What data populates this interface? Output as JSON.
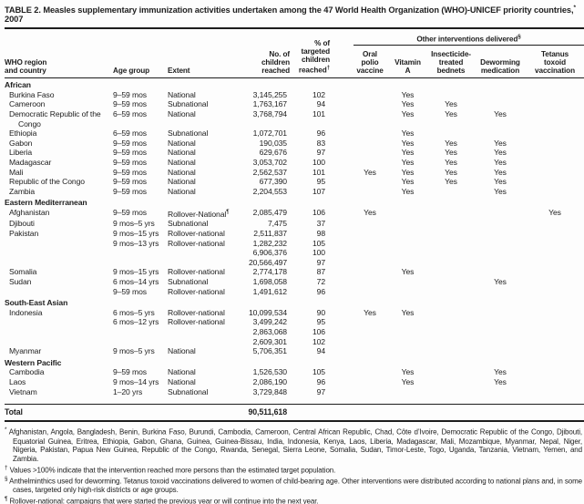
{
  "title": {
    "text": "TABLE 2. Measles supplementary immunization activities undertaken among the 47 World Health Organization (WHO)-UNICEF priority countries,",
    "marker": "*",
    "suffix": " 2007"
  },
  "header": {
    "country": "WHO region\nand country",
    "age": "Age group",
    "extent": "Extent",
    "reached": "No. of\nchildren\nreached",
    "pct": "% of\ntargeted\nchildren\nreached",
    "pct_marker": "†",
    "spanner": "Other interventions delivered",
    "spanner_marker": "§",
    "interventions": [
      "Oral\npolio\nvaccine",
      "Vitamin\nA",
      "Insecticide-\ntreated\nbednets",
      "Deworming\nmedication",
      "Tetanus\ntoxoid\nvaccination"
    ]
  },
  "table": {
    "rows": [
      {
        "type": "group",
        "country": "African"
      },
      {
        "type": "data",
        "country": "Burkina Faso",
        "age": "9–59 mos",
        "extent": "National",
        "reached": "3,145,255",
        "pct": "102",
        "interventions": [
          "",
          "Yes",
          "",
          "",
          ""
        ]
      },
      {
        "type": "data",
        "country": "Cameroon",
        "age": "9–59 mos",
        "extent": "Subnational",
        "reached": "1,763,167",
        "pct": "94",
        "interventions": [
          "",
          "Yes",
          "Yes",
          "",
          ""
        ]
      },
      {
        "type": "data",
        "country": "Democratic Republic of the Congo",
        "age": "6–59 mos",
        "extent": "National",
        "reached": "3,768,794",
        "pct": "101",
        "interventions": [
          "",
          "Yes",
          "Yes",
          "Yes",
          ""
        ]
      },
      {
        "type": "data",
        "country": "Ethiopia",
        "age": "6–59 mos",
        "extent": "Subnational",
        "reached": "1,072,701",
        "pct": "96",
        "interventions": [
          "",
          "Yes",
          "",
          "",
          ""
        ]
      },
      {
        "type": "data",
        "country": "Gabon",
        "age": "9–59 mos",
        "extent": "National",
        "reached": "190,035",
        "pct": "83",
        "interventions": [
          "",
          "Yes",
          "Yes",
          "Yes",
          ""
        ]
      },
      {
        "type": "data",
        "country": "Liberia",
        "age": "9–59 mos",
        "extent": "National",
        "reached": "629,676",
        "pct": "97",
        "interventions": [
          "",
          "Yes",
          "Yes",
          "Yes",
          ""
        ]
      },
      {
        "type": "data",
        "country": "Madagascar",
        "age": "9–59 mos",
        "extent": "National",
        "reached": "3,053,702",
        "pct": "100",
        "interventions": [
          "",
          "Yes",
          "Yes",
          "Yes",
          ""
        ]
      },
      {
        "type": "data",
        "country": "Mali",
        "age": "9–59 mos",
        "extent": "National",
        "reached": "2,562,537",
        "pct": "101",
        "interventions": [
          "Yes",
          "Yes",
          "Yes",
          "Yes",
          ""
        ]
      },
      {
        "type": "data",
        "country": "Republic of the Congo",
        "age": "9–59 mos",
        "extent": "National",
        "reached": "677,390",
        "pct": "95",
        "interventions": [
          "",
          "Yes",
          "Yes",
          "Yes",
          ""
        ]
      },
      {
        "type": "data",
        "country": "Zambia",
        "age": "9–59 mos",
        "extent": "National",
        "reached": "2,204,553",
        "pct": "107",
        "interventions": [
          "",
          "Yes",
          "",
          "Yes",
          ""
        ]
      },
      {
        "type": "group",
        "country": "Eastern Mediterranean"
      },
      {
        "type": "data",
        "country": "Afghanistan",
        "age": "9–59 mos",
        "extent": "Rollover-National",
        "extent_marker": "¶",
        "reached": "2,085,479",
        "pct": "106",
        "interventions": [
          "Yes",
          "",
          "",
          "",
          "Yes"
        ]
      },
      {
        "type": "data",
        "country": "Djibouti",
        "age": "9 mos–5 yrs",
        "extent": "Subnational",
        "reached": "7,475",
        "pct": "37",
        "interventions": [
          "",
          "",
          "",
          "",
          ""
        ]
      },
      {
        "type": "data",
        "country": "Pakistan",
        "age": "9 mos–15 yrs",
        "extent": "Rollover-national",
        "reached": "2,511,837",
        "pct": "98",
        "interventions": [
          "",
          "",
          "",
          "",
          ""
        ]
      },
      {
        "type": "data",
        "country": "",
        "age": "9 mos–13 yrs",
        "extent": "Rollover-national",
        "reached": "1,282,232",
        "pct": "105",
        "interventions": [
          "",
          "",
          "",
          "",
          ""
        ]
      },
      {
        "type": "data",
        "country": "",
        "age": "",
        "extent": "",
        "reached": "6,906,376",
        "pct": "100",
        "interventions": [
          "",
          "",
          "",
          "",
          ""
        ]
      },
      {
        "type": "data",
        "country": "",
        "age": "",
        "extent": "",
        "reached": "20,566,497",
        "pct": "97",
        "interventions": [
          "",
          "",
          "",
          "",
          ""
        ]
      },
      {
        "type": "data",
        "country": "Somalia",
        "age": "9 mos–15 yrs",
        "extent": "Rollover-national",
        "reached": "2,774,178",
        "pct": "87",
        "interventions": [
          "",
          "Yes",
          "",
          "",
          ""
        ]
      },
      {
        "type": "data",
        "country": "Sudan",
        "age": "6 mos–14 yrs",
        "extent": "Subnational",
        "reached": "1,698,058",
        "pct": "72",
        "interventions": [
          "",
          "",
          "",
          "Yes",
          ""
        ]
      },
      {
        "type": "data",
        "country": "",
        "age": "9–59 mos",
        "extent": "Rollover-national",
        "reached": "1,491,612",
        "pct": "96",
        "interventions": [
          "",
          "",
          "",
          "",
          ""
        ]
      },
      {
        "type": "group",
        "country": "South-East Asian"
      },
      {
        "type": "data",
        "country": "Indonesia",
        "age": "6 mos–5 yrs",
        "extent": "Rollover-national",
        "reached": "10,099,534",
        "pct": "90",
        "interventions": [
          "Yes",
          "Yes",
          "",
          "",
          ""
        ]
      },
      {
        "type": "data",
        "country": "",
        "age": "6 mos–12 yrs",
        "extent": "Rollover-national",
        "reached": "3,499,242",
        "pct": "95",
        "interventions": [
          "",
          "",
          "",
          "",
          ""
        ]
      },
      {
        "type": "data",
        "country": "",
        "age": "",
        "extent": "",
        "reached": "2,863,068",
        "pct": "106",
        "interventions": [
          "",
          "",
          "",
          "",
          ""
        ]
      },
      {
        "type": "data",
        "country": "",
        "age": "",
        "extent": "",
        "reached": "2,609,301",
        "pct": "102",
        "interventions": [
          "",
          "",
          "",
          "",
          ""
        ]
      },
      {
        "type": "data",
        "country": "Myanmar",
        "age": "9 mos–5 yrs",
        "extent": "National",
        "reached": "5,706,351",
        "pct": "94",
        "interventions": [
          "",
          "",
          "",
          "",
          ""
        ]
      },
      {
        "type": "group",
        "country": "Western Pacific"
      },
      {
        "type": "data",
        "country": "Cambodia",
        "age": "9–59 mos",
        "extent": "National",
        "reached": "1,526,530",
        "pct": "105",
        "interventions": [
          "",
          "Yes",
          "",
          "Yes",
          ""
        ]
      },
      {
        "type": "data",
        "country": "Laos",
        "age": "9 mos–14 yrs",
        "extent": "National",
        "reached": "2,086,190",
        "pct": "96",
        "interventions": [
          "",
          "Yes",
          "",
          "Yes",
          ""
        ]
      },
      {
        "type": "data",
        "country": "Vietnam",
        "age": "1–20 yrs",
        "extent": "Subnational",
        "reached": "3,729,848",
        "pct": "97",
        "interventions": [
          "",
          "",
          "",
          "",
          ""
        ]
      }
    ],
    "total": {
      "label": "Total",
      "value": "90,511,618"
    }
  },
  "footnotes": [
    {
      "marker": "*",
      "text": "Afghanistan, Angola, Bangladesh, Benin, Burkina Faso, Burundi, Cambodia, Cameroon, Central African Republic, Chad, Côte d’Ivoire, Democratic Republic of the Congo, Djibouti, Equatorial Guinea, Eritrea, Ethiopia, Gabon, Ghana, Guinea, Guinea-Bissau, India, Indonesia, Kenya, Laos, Liberia, Madagascar, Mali, Mozambique, Myanmar, Nepal, Niger, Nigeria, Pakistan, Papua New Guinea, Republic of the Congo, Rwanda, Senegal, Sierra Leone, Somalia, Sudan, Timor-Leste, Togo, Uganda, Tanzania, Vietnam, Yemen, and Zambia."
    },
    {
      "marker": "†",
      "text": "Values >100% indicate that the intervention reached more persons than the estimated target population."
    },
    {
      "marker": "§",
      "text": "Anthelminthics used for deworming. Tetanus toxoid vaccinations delivered to women of child-bearing age. Other interventions were distributed according to national plans and, in some cases, targeted only high-risk districts or age groups."
    },
    {
      "marker": "¶",
      "text": "Rollover-national: campaigns that were started the previous year or will continue into the next year."
    }
  ],
  "colors": {
    "text": "#1d1d1d",
    "rule": "#1d1d1d",
    "background": "#fdfdfd"
  }
}
